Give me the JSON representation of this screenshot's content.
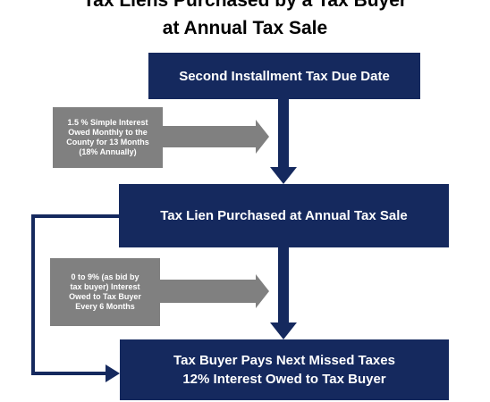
{
  "title": {
    "line1": "Tax Liens Purchased by a Tax Buyer",
    "line2": "at Annual Tax Sale"
  },
  "boxes": {
    "step1": "Second Installment Tax Due Date",
    "step2": "Tax Lien Purchased at Annual Tax Sale",
    "step3_line1": "Tax Buyer Pays Next Missed Taxes",
    "step3_line2": "12% Interest Owed to Tax Buyer"
  },
  "notes": {
    "note1": [
      "1.5 % Simple Interest",
      "Owed Monthly to the",
      "County for 13 Months",
      "(18% Annually)"
    ],
    "note2": [
      "0 to 9% (as bid by",
      "tax buyer) Interest",
      "Owed to Tax Buyer",
      "Every 6 Months"
    ]
  },
  "colors": {
    "box": "#15295e",
    "note": "#808080",
    "arrow_gray": "#808080",
    "arrow_navy": "#15295e"
  }
}
